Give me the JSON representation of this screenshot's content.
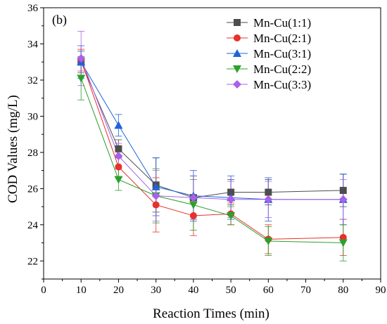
{
  "chart_data": {
    "type": "line",
    "panel_label": "(b)",
    "xlabel": "Reaction Times (min)",
    "ylabel": "COD Values (mg/L)",
    "xlim": [
      0,
      90
    ],
    "ylim": [
      21,
      36
    ],
    "xticks": [
      0,
      10,
      20,
      30,
      40,
      50,
      60,
      70,
      80,
      90
    ],
    "yticks": [
      22,
      24,
      26,
      28,
      30,
      32,
      34,
      36
    ],
    "grid": false,
    "legend_position": "top-right",
    "x": [
      10,
      20,
      30,
      40,
      50,
      60,
      80
    ],
    "series": [
      {
        "name": "Mn-Cu(1:1)",
        "color": "#4d4d4d",
        "marker": "square",
        "values": [
          33.0,
          28.2,
          26.2,
          25.5,
          25.8,
          25.8,
          25.9
        ],
        "errors": [
          0.6,
          0.5,
          1.5,
          1.2,
          0.7,
          0.7,
          0.9
        ]
      },
      {
        "name": "Mn-Cu(2:1)",
        "color": "#e8302c",
        "marker": "circle",
        "values": [
          33.1,
          27.2,
          25.1,
          24.5,
          24.6,
          23.2,
          23.3
        ],
        "errors": [
          0.6,
          0.6,
          1.5,
          1.1,
          0.6,
          0.8,
          1.0
        ]
      },
      {
        "name": "Mn-Cu(3:1)",
        "color": "#1f63d8",
        "marker": "triangle-up",
        "values": [
          33.0,
          29.5,
          26.1,
          25.6,
          25.5,
          25.4,
          25.4
        ],
        "errors": [
          0.9,
          0.6,
          1.6,
          1.4,
          1.2,
          1.2,
          1.4
        ]
      },
      {
        "name": "Mn-Cu(2:2)",
        "color": "#2ca02c",
        "marker": "triangle-down",
        "values": [
          32.1,
          26.5,
          25.6,
          25.1,
          24.5,
          23.1,
          23.0
        ],
        "errors": [
          1.2,
          0.6,
          1.5,
          1.4,
          0.5,
          0.8,
          1.0
        ]
      },
      {
        "name": "Mn-Cu(3:3)",
        "color": "#a861e8",
        "marker": "diamond",
        "values": [
          33.2,
          27.8,
          25.6,
          25.5,
          25.4,
          25.4,
          25.4
        ],
        "errors": [
          1.5,
          0.7,
          1.4,
          1.2,
          1.0,
          1.0,
          1.1
        ]
      }
    ]
  }
}
